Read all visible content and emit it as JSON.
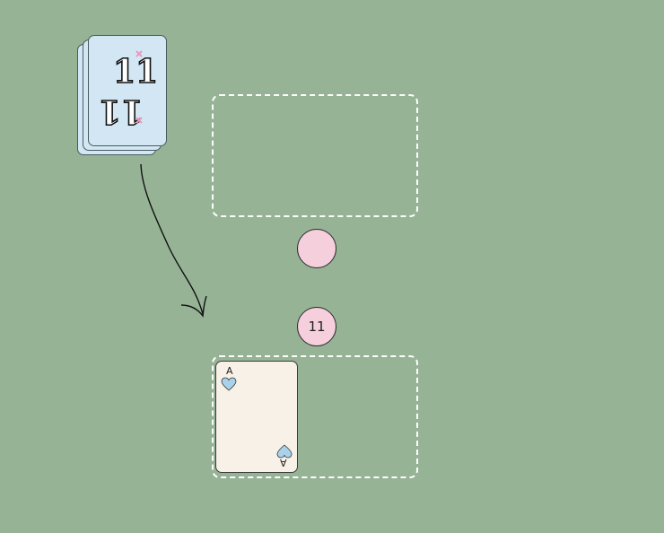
{
  "deck": {
    "logo_text": "11",
    "back_color": "#d2e7f3",
    "accent_color": "#e79bbf"
  },
  "tokens": {
    "opponent_score": "",
    "player_score": "11",
    "color": "#f5cfdc"
  },
  "player_card": {
    "rank": "A",
    "suit_icon": "heart-icon",
    "suit_color": "#a9d2ea"
  },
  "colors": {
    "table": "#96b396",
    "zone_border": "#ffffff",
    "card_face": "#f8f1e8"
  }
}
